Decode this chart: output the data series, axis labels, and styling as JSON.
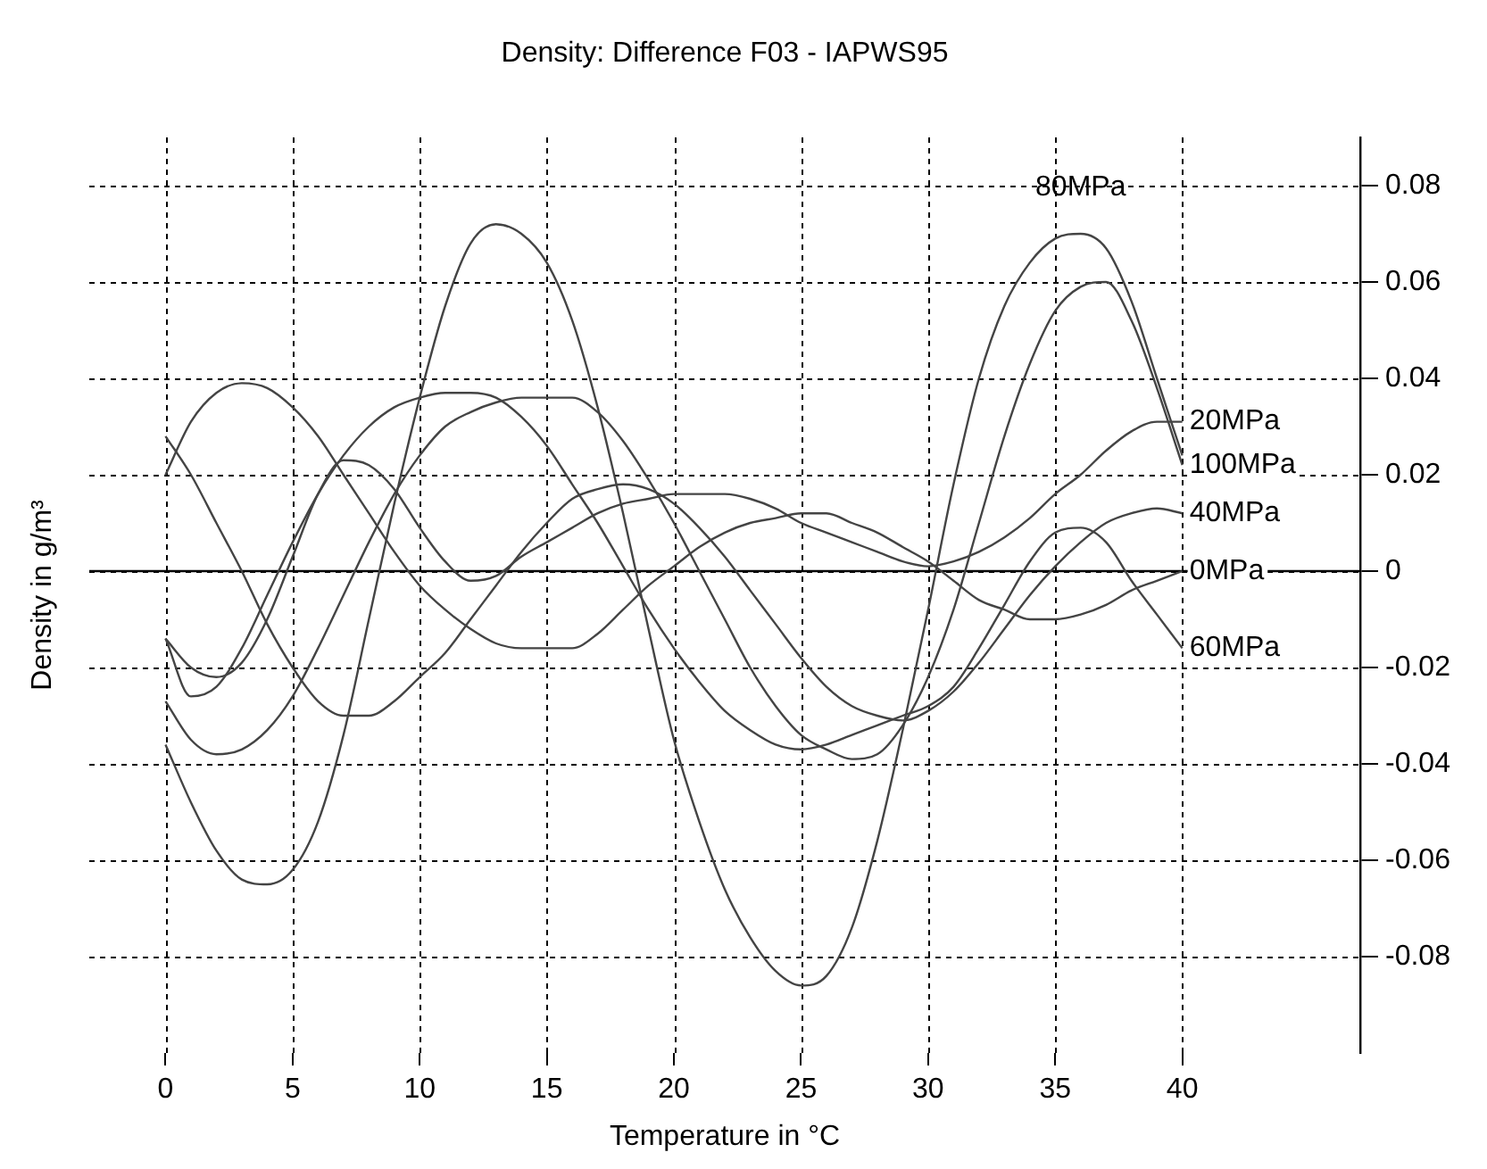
{
  "chart_data": {
    "type": "line",
    "title": "Density: Difference F03 - IAPWS95",
    "xlabel": "Temperature in °C",
    "ylabel": "Density in g/m³",
    "x": [
      0,
      1,
      2,
      3,
      4,
      5,
      6,
      7,
      8,
      9,
      10,
      11,
      12,
      13,
      14,
      15,
      16,
      17,
      18,
      19,
      20,
      21,
      22,
      23,
      24,
      25,
      26,
      27,
      28,
      29,
      30,
      31,
      32,
      33,
      34,
      35,
      36,
      37,
      38,
      39,
      40
    ],
    "series": [
      {
        "name": "20MPa",
        "color": "#444444",
        "values": [
          -0.014,
          -0.02,
          -0.022,
          -0.019,
          -0.01,
          0.003,
          0.016,
          0.023,
          0.022,
          0.017,
          0.009,
          0.002,
          -0.002,
          -0.001,
          0.003,
          0.006,
          0.009,
          0.012,
          0.014,
          0.015,
          0.016,
          0.016,
          0.016,
          0.015,
          0.013,
          0.01,
          0.008,
          0.006,
          0.004,
          0.002,
          0.001,
          0.002,
          0.004,
          0.007,
          0.011,
          0.016,
          0.02,
          0.025,
          0.029,
          0.031,
          0.031
        ]
      },
      {
        "name": "100MPa",
        "color": "#444444",
        "values": [
          -0.027,
          -0.035,
          -0.038,
          -0.037,
          -0.033,
          -0.026,
          -0.016,
          -0.005,
          0.006,
          0.016,
          0.024,
          0.03,
          0.033,
          0.035,
          0.036,
          0.036,
          0.036,
          0.033,
          0.027,
          0.019,
          0.01,
          0.0,
          -0.01,
          -0.02,
          -0.028,
          -0.034,
          -0.037,
          -0.039,
          -0.038,
          -0.032,
          -0.022,
          -0.008,
          0.01,
          0.028,
          0.043,
          0.054,
          0.059,
          0.06,
          0.052,
          0.038,
          0.022
        ]
      },
      {
        "name": "40MPa",
        "color": "#444444",
        "values": [
          0.028,
          0.02,
          0.01,
          0.0,
          -0.011,
          -0.02,
          -0.027,
          -0.03,
          -0.03,
          -0.027,
          -0.022,
          -0.017,
          -0.01,
          -0.003,
          0.004,
          0.01,
          0.015,
          0.017,
          0.018,
          0.017,
          0.014,
          0.009,
          0.003,
          -0.004,
          -0.011,
          -0.018,
          -0.024,
          -0.028,
          -0.03,
          -0.031,
          -0.029,
          -0.025,
          -0.019,
          -0.012,
          -0.005,
          0.001,
          0.006,
          0.01,
          0.012,
          0.013,
          0.012
        ]
      },
      {
        "name": "0MPa",
        "color": "#444444",
        "values": [
          0.02,
          0.031,
          0.037,
          0.039,
          0.038,
          0.034,
          0.028,
          0.02,
          0.012,
          0.004,
          -0.003,
          -0.008,
          -0.012,
          -0.015,
          -0.016,
          -0.016,
          -0.016,
          -0.013,
          -0.008,
          -0.003,
          0.001,
          0.005,
          0.008,
          0.01,
          0.011,
          0.012,
          0.012,
          0.01,
          0.008,
          0.005,
          0.002,
          -0.002,
          -0.006,
          -0.008,
          -0.01,
          -0.01,
          -0.009,
          -0.007,
          -0.004,
          -0.002,
          0.0
        ]
      },
      {
        "name": "60MPa",
        "color": "#444444",
        "values": [
          -0.014,
          -0.026,
          -0.024,
          -0.016,
          -0.005,
          0.006,
          0.016,
          0.024,
          0.03,
          0.034,
          0.036,
          0.037,
          0.037,
          0.036,
          0.032,
          0.026,
          0.018,
          0.01,
          0.001,
          -0.008,
          -0.016,
          -0.023,
          -0.029,
          -0.033,
          -0.036,
          -0.037,
          -0.036,
          -0.034,
          -0.032,
          -0.03,
          -0.028,
          -0.024,
          -0.016,
          -0.007,
          0.002,
          0.008,
          0.009,
          0.006,
          -0.002,
          -0.009,
          -0.016
        ]
      },
      {
        "name": "80MPa",
        "color": "#444444",
        "values": [
          -0.036,
          -0.048,
          -0.058,
          -0.064,
          -0.065,
          -0.062,
          -0.052,
          -0.034,
          -0.01,
          0.014,
          0.036,
          0.055,
          0.068,
          0.072,
          0.07,
          0.064,
          0.052,
          0.034,
          0.012,
          -0.012,
          -0.035,
          -0.052,
          -0.066,
          -0.076,
          -0.083,
          -0.086,
          -0.084,
          -0.074,
          -0.056,
          -0.033,
          -0.008,
          0.018,
          0.04,
          0.055,
          0.064,
          0.069,
          0.07,
          0.067,
          0.056,
          0.04,
          0.024
        ]
      }
    ],
    "xlim": [
      -3,
      47
    ],
    "xticks": [
      0,
      5,
      10,
      15,
      20,
      25,
      30,
      35,
      40
    ],
    "ylim": [
      -0.1,
      0.09
    ],
    "yticks": [
      -0.08,
      -0.06,
      -0.04,
      -0.02,
      0,
      0.02,
      0.04,
      0.06,
      0.08
    ],
    "grid": true,
    "line_style": "solid",
    "marker": "none",
    "ref_lines": [
      {
        "axis": "y",
        "value": 0,
        "color": "#000000"
      }
    ]
  }
}
